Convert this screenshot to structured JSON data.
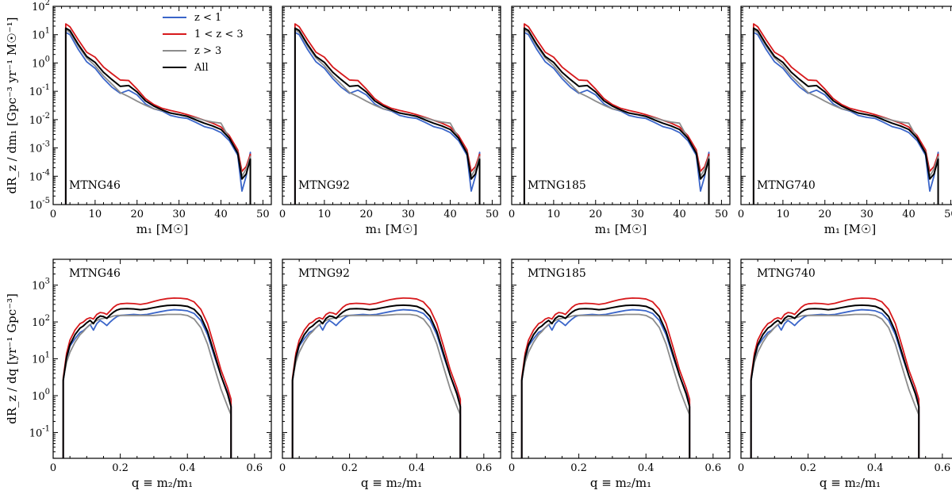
{
  "chart_data": {
    "type": "line",
    "colors": {
      "z_lt_1": "#3a65c9",
      "z_1_3": "#d7191c",
      "z_gt_3": "#8c8c8c",
      "all": "#000000"
    },
    "legend": {
      "placement": "top-right of first panel",
      "entries": [
        {
          "key": "z_lt_1",
          "label": "z < 1"
        },
        {
          "key": "z_1_3",
          "label": "1 < z < 3"
        },
        {
          "key": "z_gt_3",
          "label": "z > 3"
        },
        {
          "key": "all",
          "label": "All"
        }
      ]
    },
    "panel_labels": [
      "MTNG46",
      "MTNG92",
      "MTNG185",
      "MTNG740"
    ],
    "rows": [
      {
        "name": "mass",
        "xlabel": "m₁ [M☉]",
        "ylabel": "dR_z / dm₁ [Gpc⁻³ yr⁻¹ M☉⁻¹]",
        "xlim": [
          0,
          52
        ],
        "ylog_range": [
          -5,
          2
        ],
        "xticks": [
          0,
          10,
          20,
          30,
          40,
          50
        ],
        "yticks": [
          -5,
          -4,
          -3,
          -2,
          -1,
          0,
          1,
          2
        ],
        "label_position": "bottom-left",
        "x": [
          3,
          4,
          6,
          8,
          10,
          12,
          14,
          16,
          18,
          20,
          22,
          24,
          26,
          28,
          30,
          32,
          34,
          36,
          38,
          40,
          42,
          44,
          45,
          46,
          47
        ],
        "series": [
          {
            "key": "z_lt_1",
            "values": [
              12,
              10,
              3,
              1.1,
              0.65,
              0.28,
              0.14,
              0.085,
              0.11,
              0.075,
              0.036,
              0.024,
              0.02,
              0.014,
              0.012,
              0.011,
              0.008,
              0.0057,
              0.0048,
              0.0035,
              0.0018,
              0.00055,
              3e-05,
              0.0001,
              0.0007
            ]
          },
          {
            "key": "z_1_3",
            "values": [
              24,
              19,
              6.5,
              2.4,
              1.6,
              0.72,
              0.42,
              0.25,
              0.24,
              0.12,
              0.055,
              0.034,
              0.025,
              0.021,
              0.018,
              0.015,
              0.012,
              0.0095,
              0.0075,
              0.0055,
              0.0027,
              0.00085,
              0.00015,
              0.00022,
              0.0006
            ]
          },
          {
            "key": "z_gt_3",
            "values": [
              15,
              12,
              4,
              1.5,
              0.8,
              0.35,
              0.18,
              0.09,
              0.065,
              0.045,
              0.032,
              0.024,
              0.021,
              0.017,
              0.015,
              0.013,
              0.0115,
              0.0095,
              0.0082,
              0.0075,
              0.0022,
              0.0007,
              0.0001,
              0.00018,
              0.0005
            ]
          },
          {
            "key": "all",
            "values": [
              17,
              14,
              4.5,
              1.7,
              1.05,
              0.47,
              0.26,
              0.15,
              0.16,
              0.095,
              0.046,
              0.03,
              0.022,
              0.017,
              0.015,
              0.013,
              0.0098,
              0.0075,
              0.006,
              0.0045,
              0.0022,
              0.00065,
              8e-05,
              0.00012,
              0.0004
            ]
          }
        ]
      },
      {
        "name": "ratio",
        "xlabel": "q ≡ m₂/m₁",
        "ylabel": "dR_z / dq [yr⁻¹ Gpc⁻³]",
        "xlim": [
          0,
          0.65
        ],
        "ylog_range": [
          -1.7,
          3.7
        ],
        "xticks": [
          0,
          0.2,
          0.4,
          0.6
        ],
        "yticks": [
          -1,
          0,
          1,
          2,
          3
        ],
        "label_position": "top-left",
        "x": [
          0.03,
          0.04,
          0.05,
          0.065,
          0.08,
          0.09,
          0.1,
          0.11,
          0.12,
          0.13,
          0.14,
          0.15,
          0.16,
          0.17,
          0.18,
          0.19,
          0.2,
          0.22,
          0.24,
          0.26,
          0.28,
          0.3,
          0.32,
          0.34,
          0.36,
          0.38,
          0.4,
          0.42,
          0.44,
          0.46,
          0.48,
          0.5,
          0.52,
          0.53
        ],
        "series": [
          {
            "key": "z_lt_1",
            "values": [
              2.5,
              10,
              22,
              35,
              52,
              58,
              70,
              85,
              60,
              90,
              110,
              95,
              80,
              100,
              120,
              140,
              150,
              155,
              160,
              155,
              160,
              175,
              190,
              205,
              215,
              210,
              200,
              170,
              110,
              45,
              12,
              3.5,
              1.2,
              0.6
            ]
          },
          {
            "key": "z_1_3",
            "values": [
              3,
              14,
              32,
              60,
              90,
              100,
              120,
              130,
              120,
              160,
              180,
              175,
              160,
              200,
              250,
              290,
              310,
              320,
              315,
              300,
              320,
              360,
              400,
              430,
              445,
              440,
              420,
              350,
              220,
              90,
              22,
              5,
              1.6,
              0.8
            ]
          },
          {
            "key": "z_gt_3",
            "values": [
              2.8,
              8,
              15,
              28,
              45,
              55,
              70,
              85,
              95,
              110,
              120,
              125,
              130,
              135,
              145,
              150,
              150,
              150,
              150,
              150,
              150,
              150,
              155,
              160,
              160,
              160,
              150,
              120,
              70,
              25,
              6,
              1.5,
              0.5,
              0.3
            ]
          },
          {
            "key": "all",
            "values": [
              2.6,
              11,
              24,
              45,
              68,
              78,
              95,
              110,
              90,
              125,
              145,
              140,
              125,
              155,
              185,
              210,
              225,
              230,
              225,
              215,
              225,
              245,
              265,
              280,
              285,
              280,
              265,
              220,
              140,
              55,
              14,
              3.5,
              1.1,
              0.5
            ]
          }
        ]
      }
    ]
  }
}
